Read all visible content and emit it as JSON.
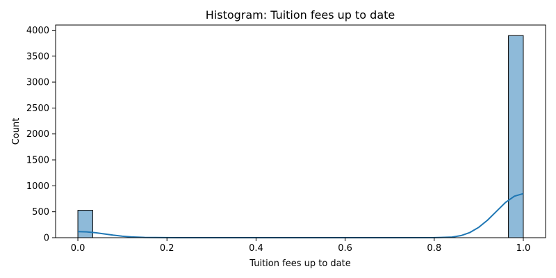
{
  "chart_data": {
    "type": "bar",
    "subtype": "histogram",
    "title": "Histogram: Tuition fees up to date",
    "xlabel": "Tuition fees up to date",
    "ylabel": "Count",
    "xlim": [
      -0.05,
      1.05
    ],
    "ylim": [
      0,
      4100
    ],
    "xticks": [
      "0.0",
      "0.2",
      "0.4",
      "0.6",
      "0.8",
      "1.0"
    ],
    "yticks": [
      "0",
      "500",
      "1000",
      "1500",
      "2000",
      "2500",
      "3000",
      "3500",
      "4000"
    ],
    "bins": [
      {
        "x0": 0.0,
        "x1": 0.0333,
        "count": 528
      },
      {
        "x0": 0.9667,
        "x1": 1.0,
        "count": 3896
      }
    ],
    "kde": {
      "x": [
        0.0,
        0.02,
        0.04,
        0.06,
        0.08,
        0.1,
        0.12,
        0.15,
        0.2,
        0.3,
        0.5,
        0.7,
        0.8,
        0.84,
        0.86,
        0.88,
        0.9,
        0.92,
        0.94,
        0.96,
        0.98,
        1.0
      ],
      "y": [
        118,
        112,
        95,
        72,
        48,
        28,
        15,
        5,
        1,
        0,
        0,
        0,
        1,
        12,
        40,
        100,
        200,
        340,
        510,
        680,
        800,
        850
      ]
    },
    "grid": false,
    "legend": "none",
    "colors": {
      "bar_fill": "#8ebad9",
      "bar_edge": "#000000",
      "kde_line": "#1f77b4"
    }
  }
}
